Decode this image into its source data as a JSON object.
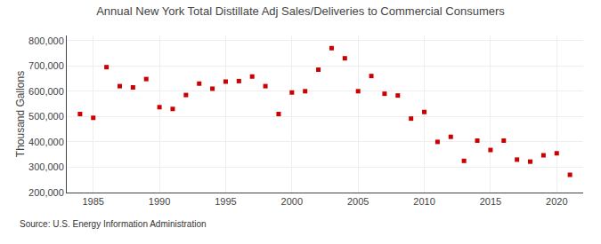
{
  "chart_data": {
    "type": "scatter",
    "title": "Annual New York Total Distillate Adj Sales/Deliveries to Commercial Consumers",
    "ylabel": "Thousand Gallons",
    "annotations": [
      "Source: U.S. Energy Information Administration"
    ],
    "color": "#cc0000",
    "marker": "square",
    "grid": true,
    "xlim": [
      1983,
      2022
    ],
    "ylim": [
      200000,
      820000
    ],
    "xticks": [
      1985,
      1990,
      1995,
      2000,
      2005,
      2010,
      2015,
      2020
    ],
    "yticks": [
      {
        "value": 200000,
        "label": "200,000"
      },
      {
        "value": 300000,
        "label": "300,000"
      },
      {
        "value": 400000,
        "label": "400,000"
      },
      {
        "value": 500000,
        "label": "500,000"
      },
      {
        "value": 600000,
        "label": "600,000"
      },
      {
        "value": 700000,
        "label": "700,000"
      },
      {
        "value": 800000,
        "label": "800,000"
      }
    ],
    "x": [
      1984,
      1985,
      1986,
      1987,
      1988,
      1989,
      1990,
      1991,
      1992,
      1993,
      1994,
      1995,
      1996,
      1997,
      1998,
      1999,
      2000,
      2001,
      2002,
      2003,
      2004,
      2005,
      2006,
      2007,
      2008,
      2009,
      2010,
      2011,
      2012,
      2013,
      2014,
      2015,
      2016,
      2017,
      2018,
      2019,
      2020,
      2021
    ],
    "values": [
      510000,
      495000,
      695000,
      620000,
      615000,
      648000,
      537000,
      530000,
      585000,
      630000,
      610000,
      638000,
      640000,
      658000,
      620000,
      510000,
      595000,
      600000,
      685000,
      770000,
      730000,
      600000,
      660000,
      590000,
      583000,
      492000,
      518000,
      400000,
      420000,
      325000,
      405000,
      368000,
      405000,
      330000,
      322000,
      347000,
      355000,
      270000
    ]
  }
}
